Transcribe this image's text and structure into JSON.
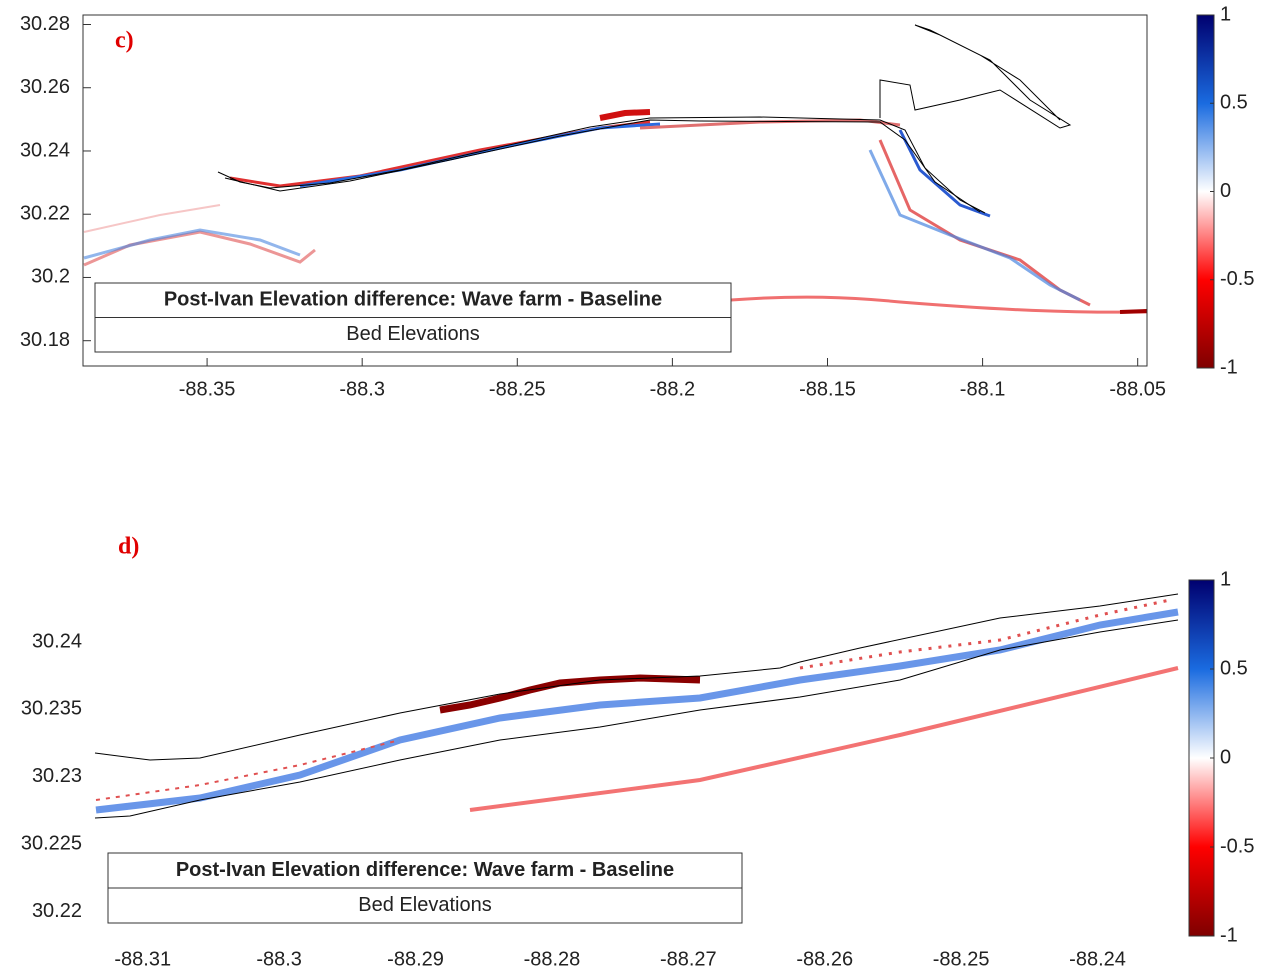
{
  "chart_data": [
    {
      "type": "heatmap",
      "panel_label": "c)",
      "title": "Post-Ivan Elevation difference: Wave farm - Baseline",
      "subtitle": "Bed Elevations",
      "xlim": [
        -88.39,
        -88.047
      ],
      "xticks": [
        -88.35,
        -88.3,
        -88.25,
        -88.2,
        -88.15,
        -88.1,
        -88.05
      ],
      "ylim": [
        30.172,
        30.283
      ],
      "yticks": [
        30.18,
        30.2,
        30.22,
        30.24,
        30.26,
        30.28
      ],
      "clim": [
        -1,
        1
      ],
      "cticks": [
        -1,
        -0.5,
        0,
        0.5,
        1
      ],
      "colormap": [
        "#7f0000",
        "#ff0000",
        "#ffffff",
        "#1a6be0",
        "#00006f"
      ],
      "box": true
    },
    {
      "type": "heatmap",
      "panel_label": "d)",
      "title": "Post-Ivan Elevation difference: Wave farm - Baseline",
      "subtitle": "Bed Elevations",
      "xlim": [
        -88.3135,
        -88.2341
      ],
      "xticks": [
        -88.31,
        -88.3,
        -88.29,
        -88.28,
        -88.27,
        -88.26,
        -88.25,
        -88.24
      ],
      "ylim": [
        30.2182,
        30.2446
      ],
      "yticks": [
        30.22,
        30.225,
        30.23,
        30.235,
        30.24
      ],
      "clim": [
        -1,
        1
      ],
      "cticks": [
        -1,
        -0.5,
        0,
        0.5,
        1
      ],
      "colormap": [
        "#7f0000",
        "#ff0000",
        "#ffffff",
        "#1a6be0",
        "#00006f"
      ],
      "box": false
    }
  ]
}
